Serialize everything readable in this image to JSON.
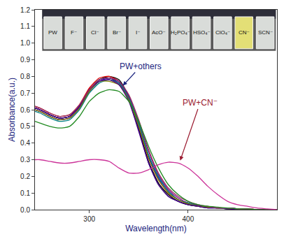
{
  "chart_data": {
    "type": "line",
    "x_title": "Wavelength(nm)",
    "y_title": "Absorbance(a.u.)",
    "xlim": [
      245,
      490
    ],
    "xticks": [
      300,
      400
    ],
    "ylim": [
      0,
      1.2
    ],
    "yticks": [
      {
        "value": 0,
        "label": "0.0"
      },
      0.1,
      0.2,
      0.3,
      0.4,
      0.5,
      0.6,
      0.7,
      0.8,
      0.9,
      {
        "value": 1,
        "label": "1.0"
      },
      1.1,
      1.2
    ],
    "grid": false,
    "inset_labels": [
      "PW",
      "F⁻",
      "Cl⁻",
      "Br⁻",
      "I⁻",
      "AcO⁻",
      "H₂PO₄⁻",
      "HSO₄⁻",
      "ClO₄⁻",
      "CN⁻",
      "SCN⁻"
    ],
    "annotations": [
      "PW+others",
      "PW+CN⁻"
    ],
    "x": [
      245,
      250,
      260,
      270,
      280,
      290,
      300,
      310,
      320,
      330,
      340,
      350,
      360,
      370,
      380,
      390,
      400,
      410,
      420,
      430,
      440,
      450,
      460,
      470,
      480,
      490
    ],
    "series": [
      {
        "color": "#000000",
        "values": [
          0.61,
          0.6,
          0.57,
          0.55,
          0.56,
          0.62,
          0.72,
          0.78,
          0.8,
          0.78,
          0.68,
          0.49,
          0.29,
          0.16,
          0.09,
          0.05,
          0.03,
          0.02,
          0.015,
          0.01,
          0.01,
          0.005,
          0.005,
          0,
          0,
          0
        ]
      },
      {
        "color": "#e00000",
        "values": [
          0.62,
          0.61,
          0.58,
          0.56,
          0.57,
          0.63,
          0.73,
          0.79,
          0.8,
          0.77,
          0.67,
          0.5,
          0.31,
          0.18,
          0.1,
          0.06,
          0.035,
          0.02,
          0.015,
          0.01,
          0.01,
          0.005,
          0.005,
          0,
          0,
          0
        ]
      },
      {
        "color": "#0000e0",
        "values": [
          0.6,
          0.59,
          0.56,
          0.54,
          0.55,
          0.61,
          0.71,
          0.77,
          0.79,
          0.77,
          0.68,
          0.51,
          0.32,
          0.19,
          0.11,
          0.06,
          0.04,
          0.025,
          0.015,
          0.01,
          0.01,
          0.005,
          0,
          0,
          0,
          0
        ]
      },
      {
        "color": "#000080",
        "values": [
          0.61,
          0.6,
          0.57,
          0.55,
          0.56,
          0.62,
          0.72,
          0.78,
          0.79,
          0.76,
          0.66,
          0.48,
          0.28,
          0.15,
          0.08,
          0.05,
          0.03,
          0.02,
          0.01,
          0.01,
          0.005,
          0.005,
          0,
          0,
          0,
          0
        ]
      },
      {
        "color": "#800080",
        "values": [
          0.6,
          0.59,
          0.56,
          0.54,
          0.55,
          0.61,
          0.71,
          0.77,
          0.78,
          0.76,
          0.68,
          0.53,
          0.35,
          0.21,
          0.12,
          0.07,
          0.04,
          0.025,
          0.015,
          0.01,
          0.01,
          0.005,
          0.005,
          0,
          0,
          0
        ]
      },
      {
        "color": "#008080",
        "values": [
          0.59,
          0.58,
          0.55,
          0.53,
          0.54,
          0.6,
          0.7,
          0.76,
          0.78,
          0.76,
          0.67,
          0.52,
          0.33,
          0.2,
          0.11,
          0.06,
          0.04,
          0.02,
          0.015,
          0.01,
          0.005,
          0.005,
          0,
          0,
          0,
          0
        ]
      },
      {
        "color": "#808000",
        "values": [
          0.6,
          0.59,
          0.56,
          0.54,
          0.55,
          0.61,
          0.71,
          0.77,
          0.77,
          0.75,
          0.66,
          0.5,
          0.31,
          0.18,
          0.1,
          0.06,
          0.035,
          0.02,
          0.015,
          0.01,
          0.005,
          0.005,
          0,
          0,
          0,
          0
        ]
      },
      {
        "color": "#4b0082",
        "values": [
          0.61,
          0.6,
          0.57,
          0.55,
          0.56,
          0.62,
          0.72,
          0.77,
          0.78,
          0.75,
          0.65,
          0.47,
          0.28,
          0.15,
          0.08,
          0.05,
          0.03,
          0.02,
          0.01,
          0.01,
          0.005,
          0,
          0,
          0,
          0,
          0
        ]
      },
      {
        "color": "#993366",
        "values": [
          0.62,
          0.61,
          0.58,
          0.56,
          0.57,
          0.63,
          0.72,
          0.78,
          0.79,
          0.77,
          0.69,
          0.54,
          0.36,
          0.22,
          0.13,
          0.08,
          0.05,
          0.03,
          0.02,
          0.01,
          0.01,
          0.005,
          0.005,
          0,
          0,
          0
        ]
      },
      {
        "color": "#228b22",
        "values": [
          0.53,
          0.52,
          0.5,
          0.49,
          0.5,
          0.56,
          0.65,
          0.7,
          0.72,
          0.71,
          0.65,
          0.53,
          0.38,
          0.25,
          0.15,
          0.09,
          0.05,
          0.03,
          0.02,
          0.015,
          0.01,
          0.005,
          0.005,
          0,
          0,
          0
        ]
      },
      {
        "color": "#cc3399",
        "values": [
          0.3,
          0.3,
          0.29,
          0.28,
          0.28,
          0.29,
          0.3,
          0.3,
          0.29,
          0.25,
          0.22,
          0.22,
          0.24,
          0.27,
          0.285,
          0.28,
          0.25,
          0.2,
          0.14,
          0.09,
          0.05,
          0.03,
          0.02,
          0.01,
          0.005,
          0
        ]
      }
    ]
  }
}
